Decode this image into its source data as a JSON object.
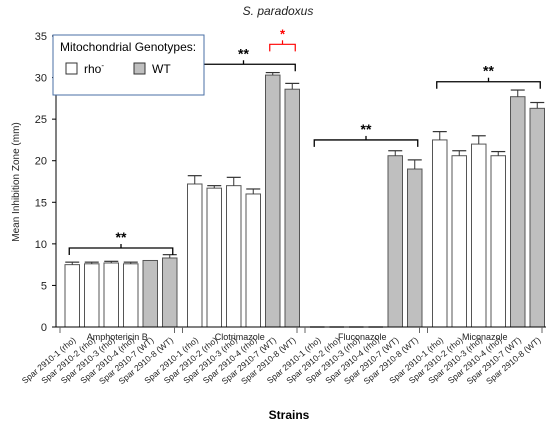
{
  "chart_data": {
    "type": "bar",
    "title": "S. paradoxus",
    "xlabel": "Strains",
    "ylabel": "Mean Inhibition Zone (mm)",
    "ylim": [
      0,
      35
    ],
    "yticks": [
      0,
      5,
      10,
      15,
      20,
      25,
      30,
      35
    ],
    "grid": false,
    "legend": {
      "title": "Mitochondrial Genotypes:",
      "placement": "top-left",
      "entries": [
        {
          "label": "rho",
          "sup": "-",
          "fill": "#ffffff"
        },
        {
          "label": "WT",
          "sup": "",
          "fill": "#bfbfbf"
        }
      ]
    },
    "groups": [
      {
        "name": "Amphotericin B",
        "bars": [
          {
            "label": "Spar 2910-1 (rho)",
            "value": 7.5,
            "error": 0.3,
            "genotype": "rho"
          },
          {
            "label": "Spar 2910-2 (rho)",
            "value": 7.6,
            "error": 0.2,
            "genotype": "rho"
          },
          {
            "label": "Spar 2910-3 (rho)",
            "value": 7.7,
            "error": 0.2,
            "genotype": "rho"
          },
          {
            "label": "Spar 2910-4 (rho)",
            "value": 7.6,
            "error": 0.2,
            "genotype": "rho"
          },
          {
            "label": "Spar 2910-7 (WT)",
            "value": 8.0,
            "error": 0.0,
            "genotype": "WT"
          },
          {
            "label": "Spar 2910-8 (WT)",
            "value": 8.3,
            "error": 0.4,
            "genotype": "WT"
          }
        ]
      },
      {
        "name": "Clotrimazole",
        "bars": [
          {
            "label": "Spar 2910-1 (rho)",
            "value": 17.2,
            "error": 1.0,
            "genotype": "rho"
          },
          {
            "label": "Spar 2910-2 (rho)",
            "value": 16.7,
            "error": 0.3,
            "genotype": "rho"
          },
          {
            "label": "Spar 2910-3 (rho)",
            "value": 17.0,
            "error": 1.0,
            "genotype": "rho"
          },
          {
            "label": "Spar 2910-4 (rho)",
            "value": 16.0,
            "error": 0.6,
            "genotype": "rho"
          },
          {
            "label": "Spar 2910-7 (WT)",
            "value": 30.3,
            "error": 0.3,
            "genotype": "WT"
          },
          {
            "label": "Spar 2910-8 (WT)",
            "value": 28.6,
            "error": 0.7,
            "genotype": "WT"
          }
        ]
      },
      {
        "name": "Fluconazole",
        "bars": [
          {
            "label": "Spar 2910-1 (rho)",
            "value": 0,
            "error": 0,
            "genotype": "rho"
          },
          {
            "label": "Spar 2910-2 (rho)",
            "value": 0,
            "error": 0,
            "genotype": "rho"
          },
          {
            "label": "Spar 2910-3 (rho)",
            "value": 0,
            "error": 0,
            "genotype": "rho"
          },
          {
            "label": "Spar 2910-4 (rho)",
            "value": 0,
            "error": 0,
            "genotype": "rho"
          },
          {
            "label": "Spar 2910-7 (WT)",
            "value": 20.6,
            "error": 0.6,
            "genotype": "WT"
          },
          {
            "label": "Spar 2910-8 (WT)",
            "value": 19.0,
            "error": 1.1,
            "genotype": "WT"
          }
        ]
      },
      {
        "name": "Miconazole",
        "bars": [
          {
            "label": "Spar 2910-1 (rho)",
            "value": 22.5,
            "error": 1.0,
            "genotype": "rho"
          },
          {
            "label": "Spar 2910-2 (rho)",
            "value": 20.6,
            "error": 0.6,
            "genotype": "rho"
          },
          {
            "label": "Spar 2910-3 (rho)",
            "value": 22.0,
            "error": 1.0,
            "genotype": "rho"
          },
          {
            "label": "Spar 2910-4 (rho)",
            "value": 20.6,
            "error": 0.5,
            "genotype": "rho"
          },
          {
            "label": "Spar 2910-7 (WT)",
            "value": 27.7,
            "error": 0.8,
            "genotype": "WT"
          },
          {
            "label": "Spar 2910-8 (WT)",
            "value": 26.3,
            "error": 0.7,
            "genotype": "WT"
          }
        ]
      }
    ],
    "annotations": [
      {
        "text": "**",
        "group": 0,
        "bracket_y": 9.5,
        "color": "#000000"
      },
      {
        "text": "**",
        "group": 1,
        "bracket_y": 31.6,
        "color": "#000000"
      },
      {
        "text": "*",
        "group": 1,
        "bracket_y": 34.0,
        "color": "#ff0000",
        "bars": [
          4,
          5
        ]
      },
      {
        "text": "**",
        "group": 2,
        "bracket_y": 22.5,
        "color": "#000000"
      },
      {
        "text": "**",
        "group": 3,
        "bracket_y": 29.5,
        "color": "#000000"
      }
    ],
    "colors": {
      "rho": "#ffffff",
      "WT": "#bfbfbf",
      "outline": "#555555",
      "significance_red": "#ff0000"
    }
  }
}
